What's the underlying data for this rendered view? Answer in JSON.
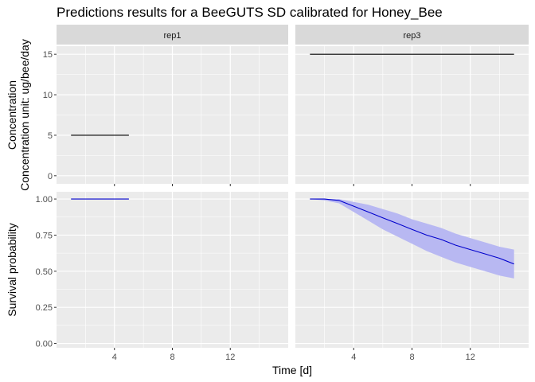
{
  "chart_data": {
    "type": "line",
    "title": "Predictions results for a BeeGUTS SD calibrated for Honey_Bee",
    "xlabel": "Time [d]",
    "facets": [
      "rep1",
      "rep3"
    ],
    "x_ticks": [
      "4",
      "8",
      "12"
    ],
    "xlim": [
      0,
      16
    ],
    "rows": [
      {
        "ylabel_lines": [
          "Concentration",
          "Concentration unit: ug/bee/day"
        ],
        "ylim": [
          -1,
          16
        ],
        "y_ticks": [
          "0",
          "5",
          "10",
          "15"
        ],
        "panels": [
          {
            "facet": "rep1",
            "x": [
              1,
              5
            ],
            "y": [
              5,
              5
            ]
          },
          {
            "facet": "rep3",
            "x": [
              1,
              15
            ],
            "y": [
              15,
              15
            ]
          }
        ]
      },
      {
        "ylabel_lines": [
          "Survival probability"
        ],
        "ylim": [
          -0.03,
          1.05
        ],
        "y_ticks": [
          "0.00",
          "0.25",
          "0.50",
          "0.75",
          "1.00"
        ],
        "panels": [
          {
            "facet": "rep1",
            "x": [
              1,
              5
            ],
            "y": [
              1.0,
              1.0
            ]
          },
          {
            "facet": "rep3",
            "x": [
              1,
              2,
              3,
              4,
              5,
              6,
              7,
              8,
              9,
              10,
              11,
              12,
              13,
              14,
              15
            ],
            "y": [
              1.0,
              1.0,
              0.99,
              0.95,
              0.91,
              0.87,
              0.83,
              0.79,
              0.75,
              0.72,
              0.68,
              0.65,
              0.62,
              0.59,
              0.55
            ],
            "lower": [
              1.0,
              0.99,
              0.97,
              0.91,
              0.85,
              0.79,
              0.74,
              0.69,
              0.64,
              0.6,
              0.56,
              0.53,
              0.5,
              0.47,
              0.45
            ],
            "upper": [
              1.0,
              1.0,
              1.0,
              0.98,
              0.96,
              0.93,
              0.9,
              0.86,
              0.83,
              0.8,
              0.76,
              0.73,
              0.7,
              0.67,
              0.65
            ]
          }
        ]
      }
    ],
    "colors": {
      "panel_bg": "#ebebeb",
      "strip_bg": "#d9d9d9",
      "grid_major": "#ffffff",
      "concentration_line": "#000000",
      "survival_line": "#0000cc",
      "ribbon_fill": "#b8b8f2"
    },
    "grid": true
  }
}
